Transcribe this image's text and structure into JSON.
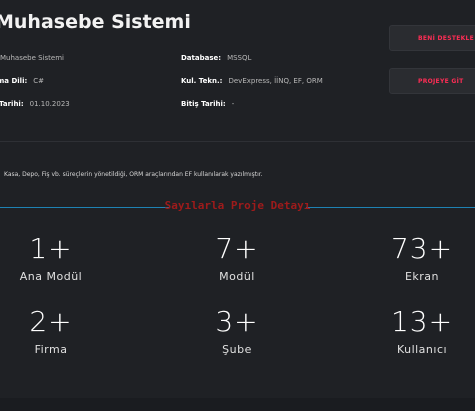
{
  "header": {
    "title": "Muhasebe Sistemi"
  },
  "info": {
    "name_value": "Muhasebe Sistemi",
    "language_label": "ma Dili:",
    "language_value": "C#",
    "date_label": "Tarihi:",
    "date_value": "01.10.2023",
    "database_label": "Database:",
    "database_value": "MSSQL",
    "tech_label": "Kul. Tekn.:",
    "tech_value": "DevExpress, İİNQ, EF, ORM",
    "end_date_label": "Bitiş Tarihi:",
    "end_date_value": "-"
  },
  "buttons": {
    "support_label": "BENİ DESTEKLE ❤",
    "project_label": "PROJEYE GİT"
  },
  "description": "Kasa, Depo, Fiş vb. süreçlerin yönetildiği, ORM araçlarından EF kullanılarak yazılmıştır.",
  "section_title": "Sayılarla Proje Detayı",
  "stats": [
    {
      "value": "1+",
      "label": "Ana Modül"
    },
    {
      "value": "7+",
      "label": "Modül"
    },
    {
      "value": "73+",
      "label": "Ekran"
    },
    {
      "value": "2+",
      "label": "Firma"
    },
    {
      "value": "3+",
      "label": "Şube"
    },
    {
      "value": "13+",
      "label": "Kullanıcı"
    }
  ],
  "colors": {
    "background": "#1f2125",
    "accent_pink": "#ff2d55",
    "divider_blue": "#1e9bd7",
    "section_title_red": "#9e1b1b"
  }
}
